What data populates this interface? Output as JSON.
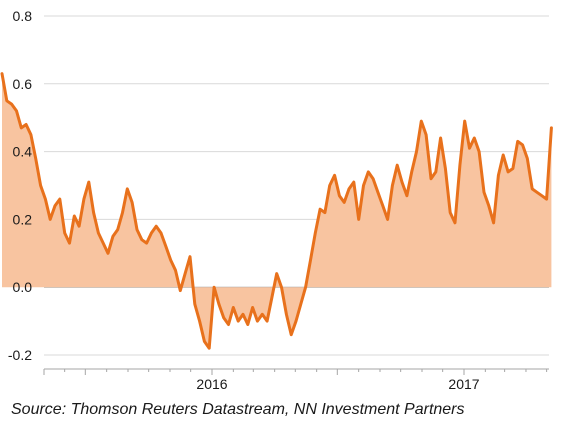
{
  "chart_data": {
    "type": "area",
    "title": "",
    "xlabel": "",
    "ylabel": "",
    "ylim": [
      -0.2,
      0.8
    ],
    "yticks": [
      "0.8",
      "0.6",
      "0.4",
      "0.2",
      "0.0",
      "-0.2"
    ],
    "xticks": [
      "2016",
      "2017"
    ],
    "grid": "horizontal",
    "legend": "none",
    "colors": {
      "line": "#E8711C",
      "fill": "#F8C4A0",
      "grid": "#D9D9D9",
      "axis": "#A6A6A6"
    },
    "x": [
      "2015-03-02",
      "2015-03-09",
      "2015-03-16",
      "2015-03-23",
      "2015-03-30",
      "2015-04-06",
      "2015-04-13",
      "2015-04-20",
      "2015-04-27",
      "2015-05-04",
      "2015-05-11",
      "2015-05-18",
      "2015-05-25",
      "2015-06-01",
      "2015-06-08",
      "2015-06-15",
      "2015-06-22",
      "2015-06-29",
      "2015-07-06",
      "2015-07-13",
      "2015-07-20",
      "2015-07-27",
      "2015-08-03",
      "2015-08-10",
      "2015-08-17",
      "2015-08-24",
      "2015-08-31",
      "2015-09-07",
      "2015-09-14",
      "2015-09-21",
      "2015-09-28",
      "2015-10-05",
      "2015-10-12",
      "2015-10-19",
      "2015-10-26",
      "2015-11-02",
      "2015-11-09",
      "2015-11-16",
      "2015-11-23",
      "2015-11-30",
      "2015-12-07",
      "2015-12-14",
      "2015-12-21",
      "2015-12-28",
      "2016-01-04",
      "2016-01-11",
      "2016-01-18",
      "2016-01-25",
      "2016-02-01",
      "2016-02-08",
      "2016-02-15",
      "2016-02-22",
      "2016-02-29",
      "2016-03-07",
      "2016-03-14",
      "2016-03-21",
      "2016-03-28",
      "2016-04-04",
      "2016-04-11",
      "2016-04-18",
      "2016-04-25",
      "2016-05-02",
      "2016-05-09",
      "2016-05-16",
      "2016-05-23",
      "2016-05-30",
      "2016-06-06",
      "2016-06-13",
      "2016-06-20",
      "2016-06-27",
      "2016-07-04",
      "2016-07-11",
      "2016-07-18",
      "2016-07-25",
      "2016-08-01",
      "2016-08-08",
      "2016-08-15",
      "2016-08-22",
      "2016-08-29",
      "2016-09-05",
      "2016-09-12",
      "2016-09-19",
      "2016-09-26",
      "2016-10-03",
      "2016-10-10",
      "2016-10-17",
      "2016-10-24",
      "2016-10-31",
      "2016-11-07",
      "2016-11-14",
      "2016-11-21",
      "2016-11-28",
      "2016-12-05",
      "2016-12-12",
      "2016-12-19",
      "2016-12-26",
      "2017-01-02",
      "2017-01-09",
      "2017-01-16",
      "2017-01-23",
      "2017-01-30",
      "2017-02-06",
      "2017-02-13",
      "2017-02-20",
      "2017-02-27",
      "2017-03-06",
      "2017-03-13",
      "2017-03-20",
      "2017-03-27",
      "2017-04-03",
      "2017-04-10",
      "2017-04-17",
      "2017-04-24",
      "2017-05-01",
      "2017-05-08"
    ],
    "series": [
      {
        "values": [
          0.63,
          0.55,
          0.54,
          0.52,
          0.47,
          0.48,
          0.45,
          0.38,
          0.3,
          0.26,
          0.2,
          0.24,
          0.26,
          0.16,
          0.13,
          0.21,
          0.18,
          0.26,
          0.31,
          0.22,
          0.16,
          0.13,
          0.1,
          0.15,
          0.17,
          0.22,
          0.29,
          0.25,
          0.17,
          0.14,
          0.13,
          0.16,
          0.18,
          0.16,
          0.12,
          0.08,
          0.05,
          -0.01,
          0.04,
          0.09,
          -0.05,
          -0.1,
          -0.16,
          -0.18,
          0.0,
          -0.05,
          -0.09,
          -0.11,
          -0.06,
          -0.1,
          -0.08,
          -0.11,
          -0.06,
          -0.1,
          -0.08,
          -0.1,
          -0.03,
          0.04,
          0.0,
          -0.08,
          -0.14,
          -0.1,
          -0.05,
          0.0,
          0.08,
          0.16,
          0.23,
          0.22,
          0.3,
          0.33,
          0.27,
          0.25,
          0.29,
          0.31,
          0.2,
          0.3,
          0.34,
          0.32,
          0.28,
          0.24,
          0.2,
          0.3,
          0.36,
          0.31,
          0.27,
          0.34,
          0.4,
          0.49,
          0.45,
          0.32,
          0.34,
          0.44,
          0.35,
          0.22,
          0.19,
          0.36,
          0.49,
          0.41,
          0.44,
          0.4,
          0.28,
          0.24,
          0.19,
          0.33,
          0.39,
          0.34,
          0.35,
          0.43,
          0.42,
          0.38,
          0.29,
          0.28,
          0.27,
          0.26,
          0.47
        ]
      }
    ]
  },
  "footer": {
    "source": "Source: Thomson Reuters Datastream, NN Investment Partners"
  }
}
